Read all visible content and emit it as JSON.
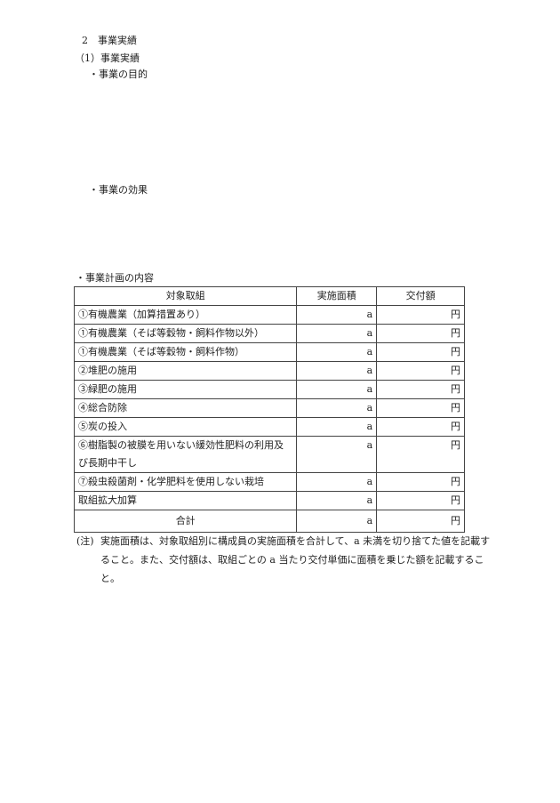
{
  "section_heading": "2　事業実績",
  "subsection_heading": "（1）事業実績",
  "purpose_label": "・事業の目的",
  "effect_label": "・事業の効果",
  "plan_label": "・事業計画の内容",
  "table": {
    "headers": [
      "対象取組",
      "実施面積",
      "交付額"
    ],
    "rows": [
      {
        "item": "①有機農業（加算措置あり）",
        "area": "a",
        "amount": "円"
      },
      {
        "item": "①有機農業（そば等穀物・飼料作物以外）",
        "area": "a",
        "amount": "円"
      },
      {
        "item": "①有機農業（そば等穀物・飼料作物）",
        "area": "a",
        "amount": "円"
      },
      {
        "item": "②堆肥の施用",
        "area": "a",
        "amount": "円"
      },
      {
        "item": "③緑肥の施用",
        "area": "a",
        "amount": "円"
      },
      {
        "item": "④総合防除",
        "area": "a",
        "amount": "円"
      },
      {
        "item": "⑤炭の投入",
        "area": "a",
        "amount": "円"
      },
      {
        "item": "⑥樹脂製の被膜を用いない緩効性肥料の利用及び長期中干し",
        "area": "a",
        "amount": "円"
      },
      {
        "item": "⑦殺虫殺菌剤・化学肥料を使用しない栽培",
        "area": "a",
        "amount": "円"
      },
      {
        "item": "取組拡大加算",
        "area": "a",
        "amount": "円"
      }
    ],
    "total": {
      "item": "合計",
      "area": "a",
      "amount": "円"
    }
  },
  "note": {
    "label": "(注)",
    "text": "実施面積は、対象取組別に構成員の実施面積を合計して、a 未満を切り捨てた値を記載すること。また、交付額は、取組ごとの a 当たり交付単価に面積を乗じた額を記載すること。"
  }
}
